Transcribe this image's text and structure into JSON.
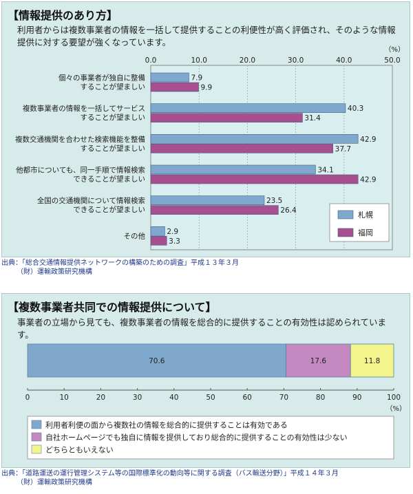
{
  "panel1": {
    "title": "【情報提供のあり方】",
    "description": "利用者からは複数事業者の情報を一括して提供することの利便性が高く評価され、そのような情報提供に対する要望が強くなっています。"
  },
  "panel2": {
    "title": "【複数事業者共同での情報提供について】",
    "description": "事業者の立場から見ても、複数事業者の情報を総合的に提供することの有効性は認められています。"
  },
  "source1": {
    "line1": "出典：「総合交通情報提供ネットワークの構築のための調査」平成１３年３月",
    "line2": "（財）運輸政策研究機構"
  },
  "source2": {
    "line1": "出典：「道路運送の運行管理システム等の国際標準化の動向等に関する調査（バス輸送分野）」平成１４年３月",
    "line2": "（財）運輸政策研究機構"
  },
  "chart_data": [
    {
      "type": "bar",
      "orientation": "horizontal",
      "unit": "（%）",
      "xlim": [
        0,
        50
      ],
      "xticks": [
        "0.0",
        "10.0",
        "20.0",
        "30.0",
        "40.0",
        "50.0"
      ],
      "grid": true,
      "legend_position": "bottom-right",
      "categories": [
        [
          "個々の事業者が独自に整備",
          "することが望ましい"
        ],
        [
          "複数事業者の情報を一括してサービス",
          "することが望ましい"
        ],
        [
          "複数交通機関を合わせた検索機能を整備",
          "することが望ましい"
        ],
        [
          "他都市についても、同一手順で情報検索",
          "できることが望ましい"
        ],
        [
          "全国の交通機関について情報検索",
          "できることが望ましい"
        ],
        [
          "その他"
        ]
      ],
      "series": [
        {
          "name": "札幌",
          "color": "#7fa8cc",
          "values": [
            7.9,
            40.3,
            42.9,
            34.1,
            23.5,
            2.9
          ],
          "labels": [
            "7.9",
            "40.3",
            "42.9",
            "34.1",
            "23.5",
            "2.9"
          ]
        },
        {
          "name": "福岡",
          "color": "#a8508f",
          "values": [
            9.9,
            31.4,
            37.7,
            42.9,
            26.4,
            3.3
          ],
          "labels": [
            "9.9",
            "31.4",
            "37.7",
            "42.9",
            "26.4",
            "3.3"
          ]
        }
      ]
    },
    {
      "type": "bar",
      "orientation": "horizontal",
      "stacked": true,
      "unit": "（%）",
      "xlim": [
        0,
        100
      ],
      "xticks": [
        "0",
        "10",
        "20",
        "30",
        "40",
        "50",
        "60",
        "70",
        "80",
        "90",
        "100"
      ],
      "legend_position": "bottom",
      "series": [
        {
          "name": "利用者利便の面から複数社の情報を総合的に提供することは有効である",
          "color": "#7fa8cc",
          "value": 70.6,
          "label": "70.6"
        },
        {
          "name": "自社ホームページでも独自に情報を提供しており総合的に提供することの有効性は少ない",
          "color": "#c389c0",
          "value": 17.6,
          "label": "17.6"
        },
        {
          "name": "どちらともいえない",
          "color": "#f4f48c",
          "value": 11.8,
          "label": "11.8"
        }
      ]
    }
  ]
}
